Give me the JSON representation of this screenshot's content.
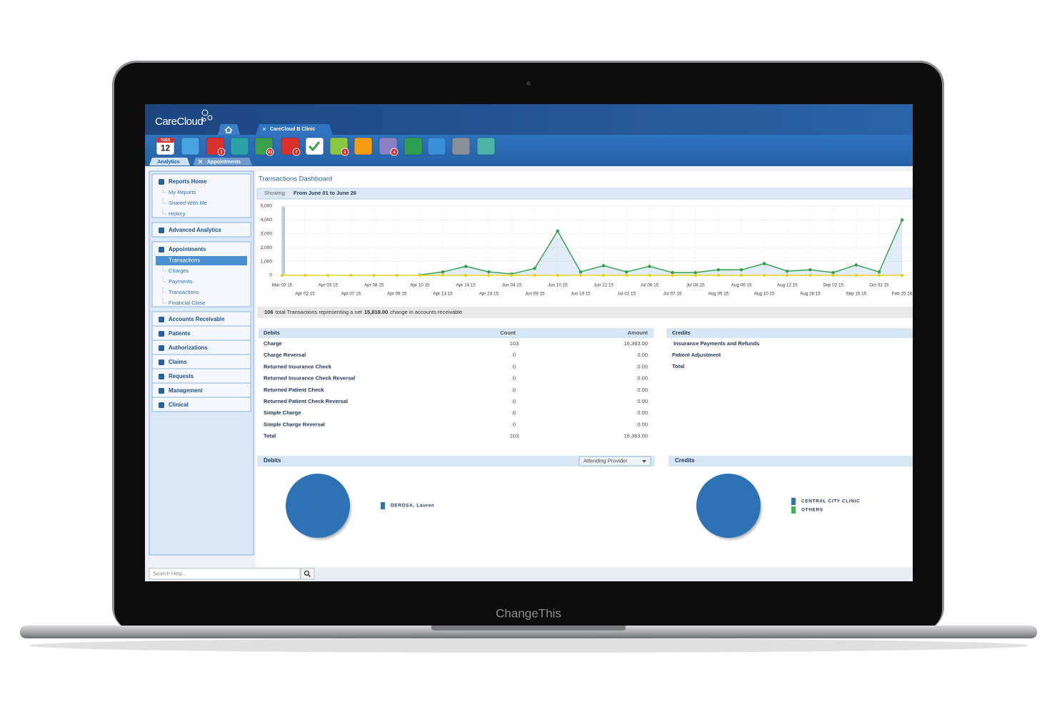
{
  "device": {
    "brand": "ChangeThis"
  },
  "header": {
    "logo": "CareCloud",
    "tab": "CareCloud B Clinic"
  },
  "toolbar": {
    "calendar_day": "TUES",
    "calendar_date": "12",
    "badges": [
      "2",
      "23",
      "7",
      "2",
      "4"
    ],
    "tabs": [
      "Analytics",
      "Appointments"
    ]
  },
  "sidebar": {
    "sections": [
      {
        "label": "Reports Home",
        "items": [
          "My Reports",
          "Shared With Me",
          "History"
        ]
      },
      {
        "label": "Advanced Analytics"
      },
      {
        "label": "Appointments",
        "selected": "Transactions",
        "items": [
          "Charges",
          "Payments",
          "Transactions",
          "Financial Close"
        ]
      },
      {
        "label": "Accounts Receivable"
      },
      {
        "label": "Patients"
      },
      {
        "label": "Authorizations"
      },
      {
        "label": "Claims"
      },
      {
        "label": "Requests"
      },
      {
        "label": "Management"
      },
      {
        "label": "Clinical"
      }
    ],
    "search_placeholder": "Search Help..."
  },
  "dashboard": {
    "title": "Transactions Dashboard",
    "showing_label": "Showing:",
    "showing_range": "From June 01 to June 26",
    "summary": {
      "count": "106",
      "text1": "total Transactions representing a net",
      "amount": "15,818.00",
      "text2": "change in accounts receivable"
    }
  },
  "chart_data": {
    "type": "line",
    "area": true,
    "grid": true,
    "categories": [
      "Mar 03 15",
      "Apr 02 15",
      "Apr 03 15",
      "Apr 07 15",
      "Apr 08 15",
      "Apr 09 15",
      "Apr 10 15",
      "Apr 13 15",
      "Apr 14 15",
      "Apr 23 15",
      "Jun 04 15",
      "Jun 09 15",
      "Jun 10 15",
      "Jun 19 15",
      "Jun 22 15",
      "Jul 02 15",
      "Jul 06 15",
      "Jul 07 15",
      "Jul 08 15",
      "Aug 05 15",
      "Aug 06 15",
      "Aug 10 15",
      "Aug 12 15",
      "Aug 28 15",
      "Sep 02 15",
      "Sep 15 15",
      "Oct 02 15",
      "Feb 25 16"
    ],
    "series": [
      {
        "color": "#2e9e45",
        "values": [
          null,
          null,
          null,
          null,
          null,
          null,
          30,
          250,
          650,
          250,
          100,
          500,
          3200,
          250,
          700,
          250,
          650,
          200,
          200,
          400,
          400,
          850,
          300,
          400,
          200,
          750,
          250,
          4000
        ]
      },
      {
        "color": "#e6d21b",
        "values": [
          0,
          0,
          0,
          0,
          0,
          0,
          0,
          0,
          0,
          0,
          0,
          0,
          0,
          0,
          0,
          0,
          0,
          0,
          0,
          0,
          0,
          0,
          0,
          0,
          0,
          0,
          0,
          0
        ]
      }
    ],
    "ylim": [
      0,
      5000
    ],
    "yticks": [
      0,
      {
        "value": 1000,
        "label": "1,000"
      },
      {
        "value": 2000,
        "label": "2,000"
      },
      {
        "value": 3000,
        "label": "3,000"
      },
      {
        "value": 4000,
        "label": "4,000"
      },
      {
        "value": 5000,
        "label": "5,000"
      }
    ]
  },
  "debits_table": {
    "columns": [
      "Debits",
      "Count",
      "Amount"
    ],
    "rows": [
      [
        "Charge",
        "103",
        "16,363.00"
      ],
      [
        "Charge Reversal",
        "0",
        "0.00"
      ],
      [
        "Returned Insurance Check",
        "0",
        "0.00"
      ],
      [
        "Returned Insurance Check Reversal",
        "0",
        "0.00"
      ],
      [
        "Returned Patient Check",
        "0",
        "0.00"
      ],
      [
        "Returned Patient Check Reversal",
        "0",
        "0.00"
      ],
      [
        "Simple Charge",
        "0",
        "0.00"
      ],
      [
        "Simple Charge Reversal",
        "0",
        "0.00"
      ],
      [
        "Total",
        "103",
        "16,363.00"
      ]
    ]
  },
  "credits_table": {
    "title": "Credits",
    "rows": [
      "Insurance Payments and Refunds",
      "Patient Adjustment",
      "Total"
    ]
  },
  "debits_pie": {
    "title": "Debits",
    "filter": "Attending Provider",
    "series": [
      {
        "name": "DEROSA, Lauren",
        "color": "#2d72b5",
        "value": 100
      }
    ]
  },
  "credits_pie": {
    "title": "Credits",
    "series": [
      {
        "name": "CENTRAL CITY CLINIC",
        "color": "#2d72b5",
        "value": 100
      },
      {
        "name": "OTHERS",
        "color": "#3bb54a",
        "value": 0
      }
    ]
  }
}
